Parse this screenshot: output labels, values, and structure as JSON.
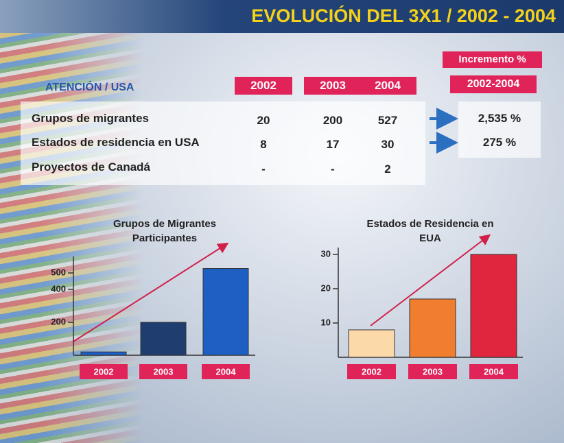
{
  "header": {
    "title": "EVOLUCIÓN DEL 3X1 / 2002 - 2004"
  },
  "table": {
    "corner": "ATENCIÓN / USA",
    "years": [
      "2002",
      "2003",
      "2004"
    ],
    "increment_title": "Incremento %",
    "increment_period": "2002-2004",
    "rows": [
      [
        "Grupos de migrantes",
        "20",
        "200",
        "527",
        "2,535 %"
      ],
      [
        "Estados de residencia en USA",
        "8",
        "17",
        "30",
        "275 %"
      ],
      [
        "Proyectos de Canadá",
        "-",
        "-",
        "2"
      ]
    ]
  },
  "chart_data": [
    {
      "type": "bar",
      "title": "Grupos de Migrantes Participantes",
      "categories": [
        "2002",
        "2003",
        "2004"
      ],
      "values": [
        20,
        200,
        527
      ],
      "colors": [
        "#1f5fc8",
        "#1f3d6e",
        "#1e5fc4"
      ],
      "ylim": [
        0,
        600
      ],
      "yticks": [
        200,
        400,
        500
      ]
    },
    {
      "type": "bar",
      "title": "Estados de Residencia en EUA",
      "categories": [
        "2002",
        "2003",
        "2004"
      ],
      "values": [
        8,
        17,
        30
      ],
      "colors": [
        "#fbd9a8",
        "#f07e2e",
        "#e0263e"
      ],
      "ylim": [
        0,
        32
      ],
      "yticks": [
        10,
        20,
        30
      ]
    }
  ]
}
